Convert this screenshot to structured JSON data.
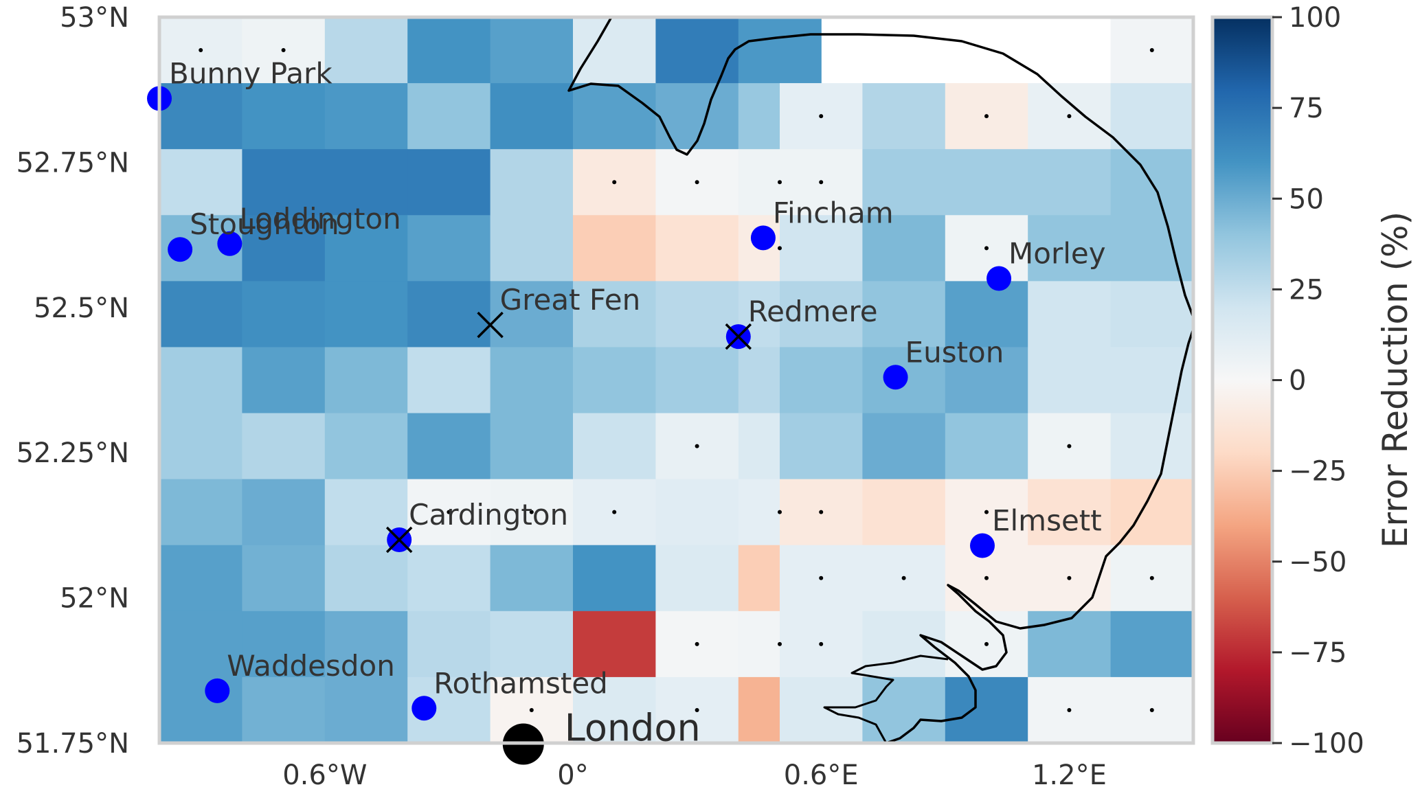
{
  "map": {
    "lat_ticks": [
      "53°N",
      "52.75°N",
      "52.5°N",
      "52.25°N",
      "52°N",
      "51.75°N"
    ],
    "lon_ticks": [
      "0.6°W",
      "0°",
      "0.6°E",
      "1.2°E"
    ],
    "lat_tick_values": [
      53.0,
      52.75,
      52.5,
      52.25,
      52.0,
      51.75
    ],
    "lon_tick_values": [
      -0.6,
      0.0,
      0.6,
      1.2
    ],
    "extent": {
      "lon_min": -1.0,
      "lon_max": 1.5,
      "lat_min": 51.75,
      "lat_max": 53.0
    },
    "grid": {
      "rows": 11,
      "cols": 13,
      "lat_top": 53.0,
      "lon_left": -1.0,
      "cell_lon": 0.2,
      "cell_lat": 0.1136,
      "values": [
        [
          8,
          5,
          28,
          60,
          55,
          15,
          70,
          58,
          52,
          50,
          null,
          null,
          null
        ],
        [
          65,
          60,
          58,
          40,
          62,
          55,
          50,
          38,
          35,
          30,
          4,
          5,
          3
        ],
        [
          25,
          70,
          70,
          70,
          30,
          -10,
          2,
          5,
          45,
          52,
          45,
          45,
          58
        ],
        [
          45,
          68,
          60,
          55,
          30,
          -25,
          -15,
          -8,
          -5,
          15,
          15,
          30,
          25
        ],
        [
          65,
          62,
          60,
          65,
          50,
          32,
          28,
          25,
          -8,
          -8,
          -10,
          30,
          30
        ],
        [
          35,
          55,
          45,
          25,
          45,
          40,
          35,
          28,
          25,
          20,
          -5,
          15,
          25
        ],
        [
          35,
          30,
          40,
          55,
          45,
          22,
          8,
          15,
          10,
          8,
          10,
          35,
          35
        ],
        [
          45,
          50,
          25,
          3,
          5,
          10,
          12,
          10,
          25,
          10,
          30,
          25,
          25
        ],
        [
          55,
          48,
          30,
          25,
          45,
          60,
          15,
          -25,
          15,
          12,
          12,
          15,
          10
        ],
        [
          55,
          55,
          50,
          28,
          25,
          -70,
          2,
          3,
          -30,
          -25,
          -25,
          -15,
          5
        ],
        [
          55,
          48,
          50,
          25,
          -3,
          15,
          10,
          -35,
          -60,
          -50,
          -40,
          -20,
          3
        ]
      ]
    },
    "grid_east": {
      "rows": 11,
      "cols": 13,
      "lon_left": 0.5,
      "values": [
        [
          null,
          null,
          null,
          null,
          3,
          3,
          3,
          3,
          3,
          3,
          null,
          null,
          null
        ],
        [
          10,
          30,
          -8,
          8,
          20,
          20,
          10,
          15,
          -10,
          5,
          5,
          null,
          null
        ],
        [
          5,
          35,
          35,
          35,
          40,
          40,
          38,
          35,
          35,
          30,
          25,
          20,
          5
        ],
        [
          20,
          45,
          5,
          40,
          40,
          40,
          38,
          40,
          40,
          38,
          35,
          35,
          38
        ],
        [
          30,
          40,
          55,
          20,
          22,
          25,
          30,
          28,
          25,
          20,
          5,
          25,
          25
        ],
        [
          40,
          45,
          50,
          20,
          20,
          25,
          30,
          30,
          25,
          15,
          5,
          10,
          8
        ],
        [
          35,
          50,
          40,
          5,
          15,
          20,
          15,
          20,
          25,
          10,
          30,
          5,
          5
        ],
        [
          -10,
          -15,
          -5,
          -15,
          -20,
          10,
          15,
          15,
          20,
          30,
          5,
          3,
          3
        ],
        [
          10,
          10,
          -5,
          -5,
          5,
          10,
          8,
          5,
          3,
          3,
          3,
          3,
          null
        ],
        [
          10,
          15,
          5,
          45,
          55,
          5,
          3,
          3,
          3,
          null,
          null,
          null,
          null
        ],
        [
          15,
          40,
          65,
          3,
          3,
          3,
          3,
          null,
          null,
          null,
          null,
          null,
          null
        ]
      ]
    },
    "stations": [
      {
        "name": "Bunny Park",
        "lon": -1.0,
        "lat": 52.86,
        "marker": "dot"
      },
      {
        "name": "Loddington",
        "lon": -0.83,
        "lat": 52.61,
        "marker": "dot"
      },
      {
        "name": "Stoughton",
        "lon": -0.95,
        "lat": 52.6,
        "marker": "dot"
      },
      {
        "name": "Fincham",
        "lon": 0.46,
        "lat": 52.62,
        "marker": "dot"
      },
      {
        "name": "Morley",
        "lon": 1.03,
        "lat": 52.55,
        "marker": "dot"
      },
      {
        "name": "Great Fen",
        "lon": -0.2,
        "lat": 52.47,
        "marker": "x"
      },
      {
        "name": "Redmere",
        "lon": 0.4,
        "lat": 52.45,
        "marker": "dot-x"
      },
      {
        "name": "Euston",
        "lon": 0.78,
        "lat": 52.38,
        "marker": "dot"
      },
      {
        "name": "Cardington",
        "lon": -0.42,
        "lat": 52.1,
        "marker": "dot-x"
      },
      {
        "name": "Elmsett",
        "lon": 0.99,
        "lat": 52.09,
        "marker": "dot"
      },
      {
        "name": "Waddesdon",
        "lon": -0.86,
        "lat": 51.84,
        "marker": "dot"
      },
      {
        "name": "Rothamsted",
        "lon": -0.36,
        "lat": 51.81,
        "marker": "dot"
      }
    ],
    "city": {
      "name": "London",
      "lon": -0.12,
      "lat": 51.76
    },
    "colors": {
      "station": "#0000ff",
      "city": "#000000",
      "coast": "#000000",
      "frame": "#d0d0d0",
      "land": "#f5f6f6"
    }
  },
  "colorbar": {
    "title": "Error Reduction (%)",
    "ticks": [
      "100",
      "75",
      "50",
      "25",
      "0",
      "−25",
      "−50",
      "−75",
      "−100"
    ],
    "tick_values": [
      100,
      75,
      50,
      25,
      0,
      -25,
      -50,
      -75,
      -100
    ],
    "range": [
      -100,
      100
    ],
    "colormap": "RdBu"
  }
}
